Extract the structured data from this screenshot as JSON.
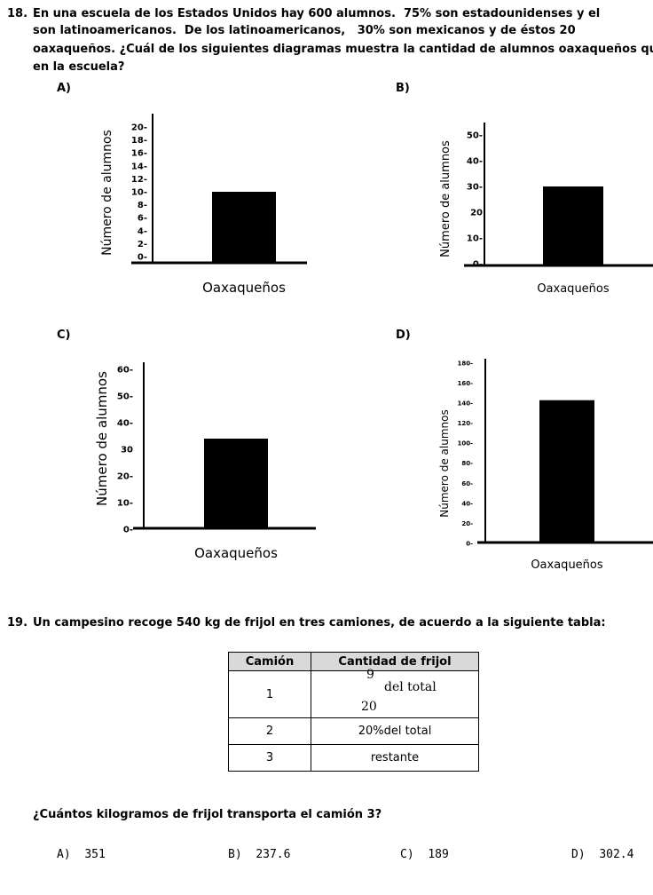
{
  "q18": {
    "number": "18.",
    "lines": [
      "En una escuela de los Estados Unidos hay 600 alumnos.  75% son estadounidenses y el",
      "son latinoamericanos.  De los latinoamericanos,   30% son mexicanos y de éstos 20",
      "oaxaqueños. ¿Cuál de los siguientes diagramas muestra la cantidad de alumnos oaxaqueños qu",
      "en la escuela?"
    ],
    "options": [
      "A)",
      "B)",
      "C)",
      "D)"
    ]
  },
  "chart_data": [
    {
      "type": "bar",
      "option": "A)",
      "ylabel": "Número de alumnos",
      "xlabel": "Oaxaqueños",
      "ylim": [
        0,
        20
      ],
      "yticks": [
        "0-",
        "2-",
        "4-",
        "6-",
        "8-",
        "10-",
        "12-",
        "14-",
        "16-",
        "18-",
        "20-"
      ],
      "categories": [
        "Oaxaqueños"
      ],
      "values": [
        10
      ],
      "color": "#000000"
    },
    {
      "type": "bar",
      "option": "B)",
      "ylabel": "Número de alumnos",
      "xlabel": "Oaxaqueños",
      "ylim": [
        0,
        50
      ],
      "yticks": [
        "0-",
        "10-",
        "20",
        "30-",
        "40-",
        "50-"
      ],
      "categories": [
        "Oaxaqueños"
      ],
      "values": [
        30
      ],
      "color": "#000000"
    },
    {
      "type": "bar",
      "option": "C)",
      "ylabel": "Número de alumnos",
      "xlabel": "Oaxaqueños",
      "ylim": [
        0,
        60
      ],
      "yticks": [
        "0-",
        "10-",
        "20-",
        "30",
        "40-",
        "50-",
        "60-"
      ],
      "categories": [
        "Oaxaqueños"
      ],
      "values": [
        34
      ],
      "color": "#000000"
    },
    {
      "type": "bar",
      "option": "D)",
      "ylabel": "Número de alumnos",
      "xlabel": "Oaxaqueños",
      "ylim": [
        0,
        180
      ],
      "yticks": [
        "0-",
        "20-",
        "40-",
        "60-",
        "80-",
        "100-",
        "120-",
        "140-",
        "160-",
        "180-"
      ],
      "categories": [
        "Oaxaqueños"
      ],
      "values": [
        143
      ],
      "color": "#000000"
    }
  ],
  "q19": {
    "number": "19.",
    "text": "Un campesino recoge 540 kg de frijol en tres camiones, de acuerdo a la siguiente tabla:",
    "table": {
      "headers": [
        "Camión",
        "Cantidad de frijol"
      ],
      "rows": [
        {
          "camion": "1",
          "numerator": "9",
          "denominator": "20",
          "suffix": "del total"
        },
        {
          "camion": "2",
          "cantidad": "20%del total"
        },
        {
          "camion": "3",
          "cantidad": "restante"
        }
      ]
    },
    "question": "¿Cuántos kilogramos de frijol transporta el camión 3?",
    "answers": [
      {
        "letter": "A)",
        "value": "351"
      },
      {
        "letter": "B)",
        "value": "237.6"
      },
      {
        "letter": "C)",
        "value": "189"
      },
      {
        "letter": "D)",
        "value": "302.4"
      }
    ]
  }
}
